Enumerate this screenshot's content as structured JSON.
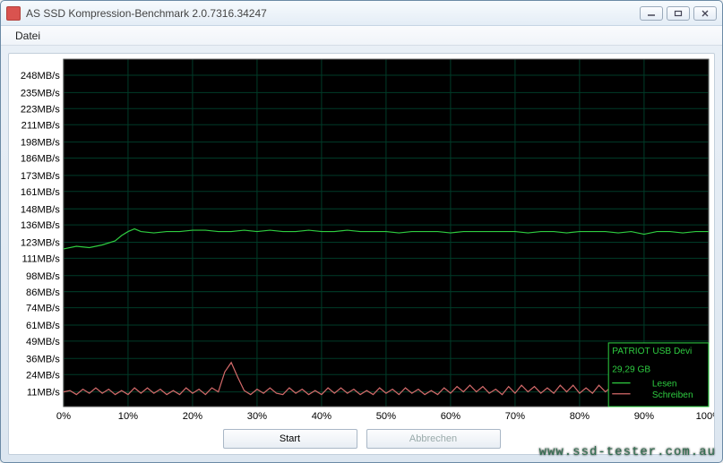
{
  "window": {
    "title": "AS SSD Kompression-Benchmark 2.0.7316.34247"
  },
  "menu": {
    "datei": "Datei"
  },
  "buttons": {
    "start": "Start",
    "abbrechen": "Abbrechen"
  },
  "watermark": "www.ssd-tester.com.au",
  "chart": {
    "type": "line",
    "background_color": "#000000",
    "grid_color": "#003b28",
    "axis_font_color": "#000000",
    "ytick_labels": [
      "11MB/s",
      "24MB/s",
      "36MB/s",
      "49MB/s",
      "61MB/s",
      "74MB/s",
      "86MB/s",
      "98MB/s",
      "111MB/s",
      "123MB/s",
      "136MB/s",
      "148MB/s",
      "161MB/s",
      "173MB/s",
      "186MB/s",
      "198MB/s",
      "211MB/s",
      "223MB/s",
      "235MB/s",
      "248MB/s"
    ],
    "ytick_values": [
      11,
      24,
      36,
      49,
      61,
      74,
      86,
      98,
      111,
      123,
      136,
      148,
      161,
      173,
      186,
      198,
      211,
      223,
      235,
      248
    ],
    "xtick_labels": [
      "0%",
      "10%",
      "20%",
      "30%",
      "40%",
      "50%",
      "60%",
      "70%",
      "80%",
      "90%",
      "100%"
    ],
    "xtick_values": [
      0,
      10,
      20,
      30,
      40,
      50,
      60,
      70,
      80,
      90,
      100
    ],
    "ylim": [
      0,
      260
    ],
    "xlim": [
      0,
      100
    ],
    "device_name": "PATRIOT USB Devi",
    "device_size": "29,29 GB",
    "legend": {
      "lesen": {
        "label": "Lesen",
        "color": "#2ecc40"
      },
      "schreiben": {
        "label": "Schreiben",
        "color": "#d46a6a"
      }
    },
    "series": {
      "lesen": {
        "color": "#2ecc40",
        "width": 1.2,
        "points": [
          [
            0,
            118
          ],
          [
            2,
            120
          ],
          [
            4,
            119
          ],
          [
            6,
            121
          ],
          [
            8,
            124
          ],
          [
            9,
            128
          ],
          [
            10,
            131
          ],
          [
            11,
            133
          ],
          [
            12,
            131
          ],
          [
            14,
            130
          ],
          [
            16,
            131
          ],
          [
            18,
            131
          ],
          [
            20,
            132
          ],
          [
            22,
            132
          ],
          [
            24,
            131
          ],
          [
            26,
            131
          ],
          [
            28,
            132
          ],
          [
            30,
            131
          ],
          [
            32,
            132
          ],
          [
            34,
            131
          ],
          [
            36,
            131
          ],
          [
            38,
            132
          ],
          [
            40,
            131
          ],
          [
            42,
            131
          ],
          [
            44,
            132
          ],
          [
            46,
            131
          ],
          [
            48,
            131
          ],
          [
            50,
            131
          ],
          [
            52,
            130
          ],
          [
            54,
            131
          ],
          [
            56,
            131
          ],
          [
            58,
            131
          ],
          [
            60,
            130
          ],
          [
            62,
            131
          ],
          [
            64,
            131
          ],
          [
            66,
            131
          ],
          [
            68,
            131
          ],
          [
            70,
            131
          ],
          [
            72,
            130
          ],
          [
            74,
            131
          ],
          [
            76,
            131
          ],
          [
            78,
            130
          ],
          [
            80,
            131
          ],
          [
            82,
            131
          ],
          [
            84,
            131
          ],
          [
            86,
            130
          ],
          [
            88,
            131
          ],
          [
            90,
            129
          ],
          [
            92,
            131
          ],
          [
            94,
            131
          ],
          [
            96,
            130
          ],
          [
            98,
            131
          ],
          [
            100,
            131
          ]
        ]
      },
      "schreiben": {
        "color": "#d46a6a",
        "width": 1.2,
        "points": [
          [
            0,
            11
          ],
          [
            1,
            12
          ],
          [
            2,
            9
          ],
          [
            3,
            13
          ],
          [
            4,
            10
          ],
          [
            5,
            14
          ],
          [
            6,
            10
          ],
          [
            7,
            13
          ],
          [
            8,
            9
          ],
          [
            9,
            12
          ],
          [
            10,
            9
          ],
          [
            11,
            14
          ],
          [
            12,
            10
          ],
          [
            13,
            14
          ],
          [
            14,
            10
          ],
          [
            15,
            13
          ],
          [
            16,
            9
          ],
          [
            17,
            12
          ],
          [
            18,
            9
          ],
          [
            19,
            14
          ],
          [
            20,
            10
          ],
          [
            21,
            13
          ],
          [
            22,
            9
          ],
          [
            23,
            14
          ],
          [
            24,
            11
          ],
          [
            25,
            26
          ],
          [
            26,
            33
          ],
          [
            27,
            22
          ],
          [
            28,
            12
          ],
          [
            29,
            9
          ],
          [
            30,
            13
          ],
          [
            31,
            10
          ],
          [
            32,
            14
          ],
          [
            33,
            10
          ],
          [
            34,
            9
          ],
          [
            35,
            14
          ],
          [
            36,
            10
          ],
          [
            37,
            13
          ],
          [
            38,
            9
          ],
          [
            39,
            12
          ],
          [
            40,
            9
          ],
          [
            41,
            14
          ],
          [
            42,
            10
          ],
          [
            43,
            14
          ],
          [
            44,
            10
          ],
          [
            45,
            13
          ],
          [
            46,
            9
          ],
          [
            47,
            12
          ],
          [
            48,
            9
          ],
          [
            49,
            14
          ],
          [
            50,
            10
          ],
          [
            51,
            13
          ],
          [
            52,
            9
          ],
          [
            53,
            14
          ],
          [
            54,
            10
          ],
          [
            55,
            13
          ],
          [
            56,
            9
          ],
          [
            57,
            12
          ],
          [
            58,
            9
          ],
          [
            59,
            14
          ],
          [
            60,
            10
          ],
          [
            61,
            15
          ],
          [
            62,
            11
          ],
          [
            63,
            16
          ],
          [
            64,
            11
          ],
          [
            65,
            15
          ],
          [
            66,
            10
          ],
          [
            67,
            13
          ],
          [
            68,
            9
          ],
          [
            69,
            15
          ],
          [
            70,
            10
          ],
          [
            71,
            16
          ],
          [
            72,
            11
          ],
          [
            73,
            15
          ],
          [
            74,
            10
          ],
          [
            75,
            14
          ],
          [
            76,
            10
          ],
          [
            77,
            16
          ],
          [
            78,
            11
          ],
          [
            79,
            16
          ],
          [
            80,
            10
          ],
          [
            81,
            14
          ],
          [
            82,
            10
          ],
          [
            83,
            16
          ],
          [
            84,
            11
          ],
          [
            85,
            15
          ],
          [
            86,
            10
          ],
          [
            87,
            14
          ],
          [
            88,
            9
          ],
          [
            89,
            15
          ],
          [
            90,
            10
          ],
          [
            91,
            16
          ],
          [
            92,
            11
          ],
          [
            93,
            15
          ],
          [
            94,
            10
          ],
          [
            95,
            14
          ],
          [
            96,
            9
          ],
          [
            97,
            15
          ],
          [
            98,
            10
          ],
          [
            99,
            16
          ],
          [
            100,
            12
          ]
        ]
      }
    }
  }
}
